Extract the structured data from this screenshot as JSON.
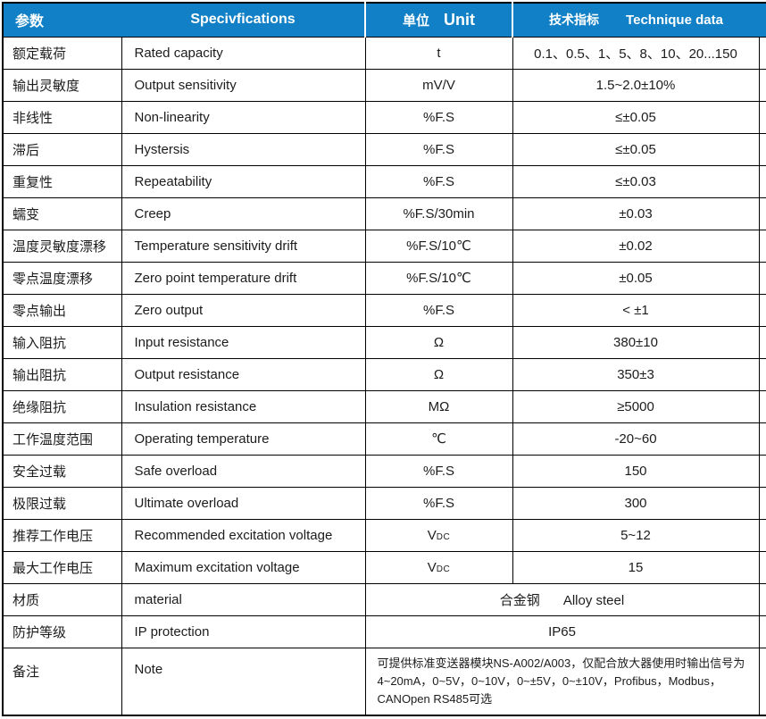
{
  "colors": {
    "header_bg": "#1180c6",
    "header_text": "#ffffff",
    "border": "#000000",
    "body_text": "#1c1c1c"
  },
  "header": {
    "col1": "参数",
    "col2": "Specivfications",
    "col3_cn": "单位",
    "col3_en": "Unit",
    "col4_cn": "技术指标",
    "col4_en": "Technique data"
  },
  "rows": [
    {
      "cn": "额定载荷",
      "en": "Rated capacity",
      "unit": "t",
      "value": "0.1、0.5、1、5、8、10、20...150"
    },
    {
      "cn": "输出灵敏度",
      "en": "Output sensitivity",
      "unit": "mV/V",
      "value": "1.5~2.0±10%"
    },
    {
      "cn": "非线性",
      "en": "Non-linearity",
      "unit": "%F.S",
      "value": "≤±0.05"
    },
    {
      "cn": "滞后",
      "en": "Hystersis",
      "unit": "%F.S",
      "value": "≤±0.05"
    },
    {
      "cn": "重复性",
      "en": "Repeatability",
      "unit": "%F.S",
      "value": "≤±0.03"
    },
    {
      "cn": "蠕变",
      "en": "Creep",
      "unit": "%F.S/30min",
      "value": "±0.03"
    },
    {
      "cn": "温度灵敏度漂移",
      "en": "Temperature sensitivity drift",
      "unit": "%F.S/10℃",
      "value": "±0.02"
    },
    {
      "cn": "零点温度漂移",
      "en": "Zero point temperature drift",
      "unit": "%F.S/10℃",
      "value": "±0.05"
    },
    {
      "cn": "零点输出",
      "en": "Zero output",
      "unit": "%F.S",
      "value": "< ±1"
    },
    {
      "cn": "输入阻抗",
      "en": "Input resistance",
      "unit": "Ω",
      "value": "380±10"
    },
    {
      "cn": "输出阻抗",
      "en": "Output resistance",
      "unit": "Ω",
      "value": "350±3"
    },
    {
      "cn": "绝缘阻抗",
      "en": "Insulation resistance",
      "unit": "MΩ",
      "value": "≥5000"
    },
    {
      "cn": "工作温度范围",
      "en": "Operating temperature",
      "unit": "℃",
      "value": "-20~60"
    },
    {
      "cn": "安全过载",
      "en": "Safe overload",
      "unit": "%F.S",
      "value": "150"
    },
    {
      "cn": "极限过载",
      "en": "Ultimate overload",
      "unit": "%F.S",
      "value": "300"
    },
    {
      "cn": "推荐工作电压",
      "en": "Recommended excitation voltage",
      "unit": "V",
      "unit_sub": "DC",
      "value": "5~12"
    },
    {
      "cn": "最大工作电压",
      "en": "Maximum excitation voltage",
      "unit": "V",
      "unit_sub": "DC",
      "value": "15"
    }
  ],
  "merged_rows": {
    "material": {
      "cn": "材质",
      "en": "material",
      "value_cn": "合金钢",
      "value_en": "Alloy steel"
    },
    "ip": {
      "cn": "防护等级",
      "en": "IP protection",
      "value": "IP65"
    },
    "note": {
      "cn": "备注",
      "en": "Note",
      "value": "可提供标准变送器模块NS-A002/A003，仅配合放大器使用时输出信号为4~20mA，0~5V，0~10V，0~±5V，0~±10V，Profibus，Modbus，CANOpen  RS485可选"
    }
  }
}
